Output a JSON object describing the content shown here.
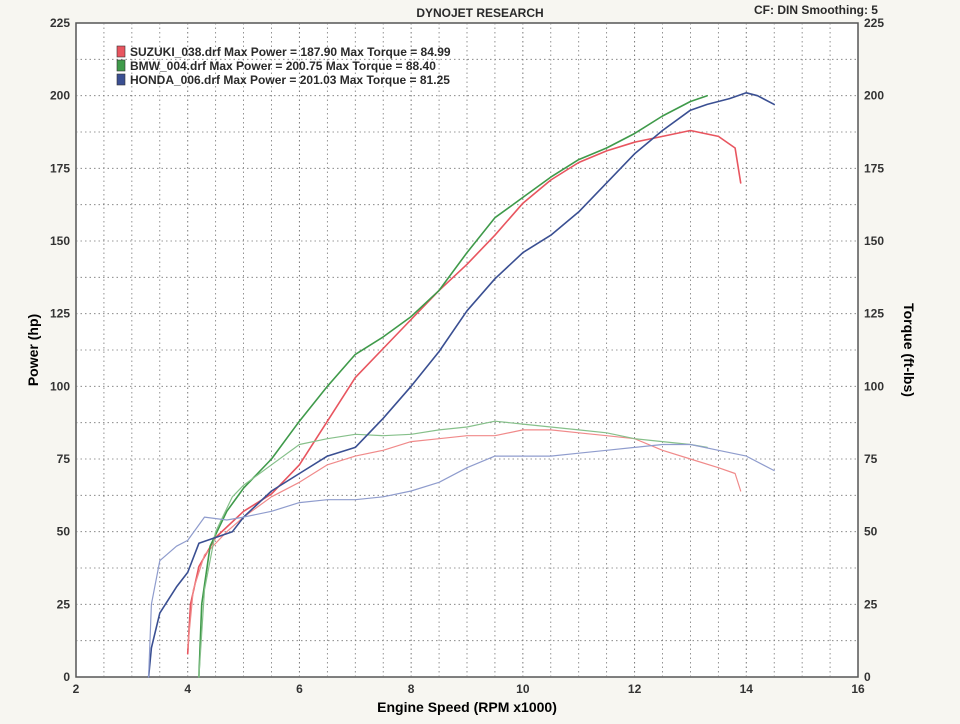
{
  "header": {
    "title": "DYNOJET RESEARCH",
    "cf_label": "CF: DIN  Smoothing: 5"
  },
  "chart_data": {
    "type": "line",
    "title": "DYNOJET RESEARCH",
    "xlabel": "Engine Speed (RPM x1000)",
    "ylabel": "Power (hp)",
    "y2label": "Torque (ft-lbs)",
    "xlim": [
      2,
      16
    ],
    "ylim": [
      0,
      225
    ],
    "y2lim": [
      0,
      225
    ],
    "xticks": [
      2,
      4,
      6,
      8,
      10,
      12,
      14,
      16
    ],
    "yticks": [
      0,
      25,
      50,
      75,
      100,
      125,
      150,
      175,
      200,
      225
    ],
    "grid": true,
    "legend_placement": "top-left",
    "legend": [
      {
        "label": "SUZUKI_038.drf Max Power = 187.90     Max Torque = 84.99",
        "color": "#e8555f"
      },
      {
        "label": "BMW_004.drf Max Power = 200.75     Max Torque = 88.40",
        "color": "#3f9a4a"
      },
      {
        "label": "HONDA_006.drf Max Power = 201.03     Max Torque = 81.25",
        "color": "#3a4f92"
      }
    ],
    "series": [
      {
        "name": "SUZUKI_038.drf",
        "measure": "power",
        "color": "#e8555f",
        "points": [
          [
            4.0,
            8
          ],
          [
            4.05,
            25
          ],
          [
            4.2,
            38
          ],
          [
            4.5,
            48
          ],
          [
            5.0,
            57
          ],
          [
            5.5,
            63
          ],
          [
            6.0,
            73
          ],
          [
            6.5,
            88
          ],
          [
            7.0,
            103
          ],
          [
            7.5,
            113
          ],
          [
            8.0,
            123
          ],
          [
            8.5,
            133
          ],
          [
            9.0,
            142
          ],
          [
            9.5,
            152
          ],
          [
            10.0,
            163
          ],
          [
            10.5,
            171
          ],
          [
            11.0,
            177
          ],
          [
            11.5,
            181
          ],
          [
            12.0,
            184
          ],
          [
            12.5,
            186
          ],
          [
            13.0,
            188
          ],
          [
            13.5,
            186
          ],
          [
            13.8,
            182
          ],
          [
            13.9,
            170
          ]
        ]
      },
      {
        "name": "SUZUKI_038.drf",
        "measure": "torque",
        "color": "#f08a8a",
        "points": [
          [
            4.0,
            10
          ],
          [
            4.1,
            30
          ],
          [
            4.3,
            42
          ],
          [
            4.7,
            50
          ],
          [
            5.0,
            55
          ],
          [
            5.5,
            62
          ],
          [
            6.0,
            67
          ],
          [
            6.5,
            73
          ],
          [
            7.0,
            76
          ],
          [
            7.5,
            78
          ],
          [
            8.0,
            81
          ],
          [
            8.5,
            82
          ],
          [
            9.0,
            83
          ],
          [
            9.5,
            83
          ],
          [
            10.0,
            85
          ],
          [
            10.5,
            85
          ],
          [
            11.0,
            84
          ],
          [
            11.5,
            83
          ],
          [
            12.0,
            82
          ],
          [
            12.5,
            78
          ],
          [
            13.0,
            75
          ],
          [
            13.5,
            72
          ],
          [
            13.8,
            70
          ],
          [
            13.9,
            64
          ]
        ]
      },
      {
        "name": "BMW_004.drf",
        "measure": "power",
        "color": "#3f9a4a",
        "points": [
          [
            4.2,
            0
          ],
          [
            4.25,
            25
          ],
          [
            4.4,
            45
          ],
          [
            4.7,
            57
          ],
          [
            5.0,
            65
          ],
          [
            5.5,
            75
          ],
          [
            6.0,
            88
          ],
          [
            6.5,
            100
          ],
          [
            7.0,
            111
          ],
          [
            7.5,
            117
          ],
          [
            8.0,
            124
          ],
          [
            8.5,
            133
          ],
          [
            9.0,
            146
          ],
          [
            9.5,
            158
          ],
          [
            10.0,
            165
          ],
          [
            10.5,
            172
          ],
          [
            11.0,
            178
          ],
          [
            11.5,
            182
          ],
          [
            12.0,
            187
          ],
          [
            12.5,
            193
          ],
          [
            13.0,
            198
          ],
          [
            13.3,
            200
          ]
        ]
      },
      {
        "name": "BMW_004.drf",
        "measure": "torque",
        "color": "#86c08a",
        "points": [
          [
            4.2,
            0
          ],
          [
            4.3,
            30
          ],
          [
            4.5,
            50
          ],
          [
            4.8,
            62
          ],
          [
            5.0,
            66
          ],
          [
            5.5,
            73
          ],
          [
            6.0,
            80
          ],
          [
            6.5,
            82
          ],
          [
            7.0,
            83.5
          ],
          [
            7.5,
            83
          ],
          [
            8.0,
            83.5
          ],
          [
            8.5,
            85
          ],
          [
            9.0,
            86
          ],
          [
            9.5,
            88
          ],
          [
            10.0,
            87
          ],
          [
            10.5,
            86
          ],
          [
            11.0,
            85
          ],
          [
            11.5,
            84
          ],
          [
            12.0,
            82
          ],
          [
            12.5,
            81
          ],
          [
            13.0,
            80
          ],
          [
            13.3,
            79
          ]
        ]
      },
      {
        "name": "HONDA_006.drf",
        "measure": "power",
        "color": "#3a4f92",
        "points": [
          [
            3.3,
            0
          ],
          [
            3.35,
            10
          ],
          [
            3.5,
            22
          ],
          [
            3.8,
            31
          ],
          [
            4.0,
            36
          ],
          [
            4.2,
            46
          ],
          [
            4.5,
            48
          ],
          [
            4.8,
            50
          ],
          [
            5.0,
            55
          ],
          [
            5.5,
            64
          ],
          [
            6.0,
            70
          ],
          [
            6.5,
            76
          ],
          [
            7.0,
            79
          ],
          [
            7.5,
            89
          ],
          [
            8.0,
            100
          ],
          [
            8.5,
            112
          ],
          [
            9.0,
            126
          ],
          [
            9.5,
            137
          ],
          [
            10.0,
            146
          ],
          [
            10.5,
            152
          ],
          [
            11.0,
            160
          ],
          [
            11.5,
            170
          ],
          [
            12.0,
            180
          ],
          [
            12.5,
            188
          ],
          [
            13.0,
            195
          ],
          [
            13.3,
            197
          ],
          [
            13.7,
            199
          ],
          [
            14.0,
            201
          ],
          [
            14.2,
            200
          ],
          [
            14.5,
            197
          ]
        ]
      },
      {
        "name": "HONDA_006.drf",
        "measure": "torque",
        "color": "#8f9ccd",
        "points": [
          [
            3.3,
            0
          ],
          [
            3.35,
            25
          ],
          [
            3.5,
            40
          ],
          [
            3.8,
            45
          ],
          [
            4.0,
            47
          ],
          [
            4.3,
            55
          ],
          [
            4.7,
            54
          ],
          [
            5.0,
            55
          ],
          [
            5.5,
            57
          ],
          [
            6.0,
            60
          ],
          [
            6.5,
            61
          ],
          [
            7.0,
            61
          ],
          [
            7.5,
            62
          ],
          [
            8.0,
            64
          ],
          [
            8.5,
            67
          ],
          [
            9.0,
            72
          ],
          [
            9.5,
            76
          ],
          [
            10.0,
            76
          ],
          [
            10.5,
            76
          ],
          [
            11.0,
            77
          ],
          [
            11.5,
            78
          ],
          [
            12.0,
            79
          ],
          [
            12.5,
            80
          ],
          [
            13.0,
            80
          ],
          [
            13.5,
            78
          ],
          [
            14.0,
            76
          ],
          [
            14.3,
            73
          ],
          [
            14.5,
            71
          ]
        ]
      }
    ]
  }
}
